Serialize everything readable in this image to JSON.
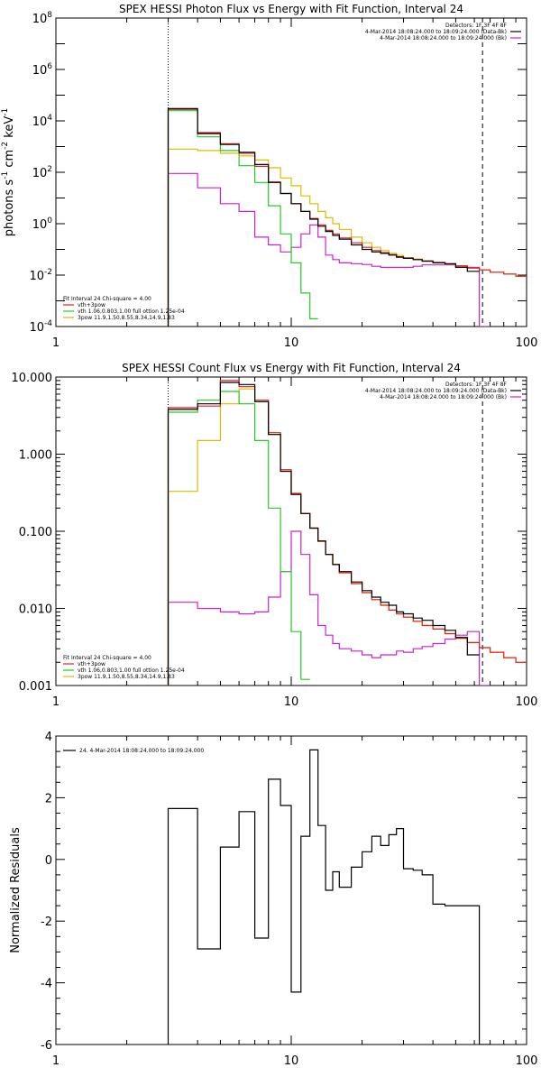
{
  "chart_data": [
    {
      "type": "line",
      "title": "SPEX HESSI Photon Flux vs Energy with Fit Function, Interval 24",
      "ylabel": "photons s^-1 cm^-2 keV^-1",
      "xscale": "log",
      "yscale": "log",
      "xlim": [
        1,
        100
      ],
      "ylim": [
        0.0001,
        100000000
      ],
      "xticks": [
        1,
        10,
        100
      ],
      "xtick_labels": [
        "1",
        "10",
        "100"
      ],
      "yticks": [
        0.0001,
        0.01,
        1,
        100,
        10000,
        1000000,
        100000000
      ],
      "ytick_labels": [
        "10^-4",
        "10^-2",
        "10^0",
        "10^2",
        "10^4",
        "10^6",
        "10^8"
      ],
      "vlines": [
        {
          "x": 3,
          "style": "dotted"
        },
        {
          "x": 65,
          "style": "dashed"
        }
      ],
      "legend_top_right": [
        {
          "text": "Detectors: 1F 3F 4F 8F",
          "color": ""
        },
        {
          "text": "4-Mar-2014 18:08:24.000 to 18:09:24.000 (Data-Bk)",
          "color": "#000000"
        },
        {
          "text": "4-Mar-2014 18:08:24.000 to 18:09:24.000 (Bk)",
          "color": "#cc22cc"
        }
      ],
      "legend_bottom_left": [
        {
          "text": "Fit Interval 24    Chi-square = 4.00",
          "color": ""
        },
        {
          "text": "vth+3pow",
          "color": "#dd2222"
        },
        {
          "text": "vth 1.06,0.803,1.00  full ottion 1.25e-04",
          "color": "#22cc22"
        },
        {
          "text": "3pow 11.9,1.50,8.55,8.34,14.9,1.83",
          "color": "#ddbb00"
        }
      ],
      "series": [
        {
          "name": "4-Mar-2014 18:08:24.000 to 18:09:24.000 (Data-Bk)",
          "color": "#000000",
          "edges": [
            3,
            4,
            5,
            6,
            7,
            8,
            9,
            10,
            11,
            12,
            13,
            14,
            15,
            16,
            18,
            20,
            22,
            24,
            26,
            28,
            30,
            33,
            36,
            40,
            45,
            50,
            56,
            63,
            70,
            80,
            90,
            100
          ],
          "values": [
            30000,
            3200,
            1200,
            600,
            200,
            40,
            15,
            6,
            3,
            1.5,
            0.8,
            0.5,
            0.35,
            0.25,
            0.15,
            0.1,
            0.08,
            0.07,
            0.06,
            0.05,
            0.045,
            0.04,
            0.035,
            0.03,
            0.028,
            0.02,
            0.014,
            null,
            null,
            null,
            null
          ]
        },
        {
          "name": "vth+3pow",
          "color": "#dd2222",
          "edges": [
            3,
            4,
            5,
            6,
            7,
            8,
            9,
            10,
            11,
            12,
            13,
            14,
            15,
            16,
            18,
            20,
            22,
            24,
            26,
            28,
            30,
            33,
            36,
            40,
            45,
            50,
            56,
            63,
            70,
            80,
            90,
            100
          ],
          "values": [
            28000,
            3500,
            1300,
            550,
            170,
            42,
            15,
            6,
            3,
            1.6,
            0.9,
            0.55,
            0.4,
            0.28,
            0.18,
            0.12,
            0.09,
            0.075,
            0.062,
            0.052,
            0.046,
            0.04,
            0.035,
            0.031,
            0.027,
            0.023,
            0.019,
            0.016,
            0.013,
            0.011,
            0.009
          ]
        },
        {
          "name": "vth 1.06,0.803,1.00  full ottion 1.25e-04",
          "color": "#22cc22",
          "edges": [
            3,
            4,
            5,
            6,
            7,
            8,
            9,
            10,
            11,
            12,
            13
          ],
          "values": [
            25000,
            2400,
            700,
            180,
            40,
            5,
            0.4,
            0.03,
            0.002,
            0.0002
          ]
        },
        {
          "name": "3pow 11.9,1.50,8.55,8.34,14.9,1.83",
          "color": "#ddbb00",
          "edges": [
            3,
            4,
            5,
            6,
            7,
            8,
            9,
            10,
            11,
            12,
            13,
            14,
            15,
            16,
            18,
            20,
            22,
            24,
            26,
            28,
            30,
            33,
            36,
            40,
            45,
            50,
            56,
            63,
            70,
            80,
            90,
            100
          ],
          "values": [
            800,
            700,
            550,
            430,
            300,
            150,
            60,
            30,
            12,
            6,
            3,
            1.7,
            1.0,
            0.6,
            0.3,
            0.18,
            0.12,
            0.09,
            0.07,
            0.058,
            0.048,
            0.042,
            0.036,
            0.031,
            0.027,
            0.023,
            0.019,
            0.016,
            0.013,
            0.011,
            0.009
          ]
        },
        {
          "name": "4-Mar-2014 18:08:24.000 to 18:09:24.000 (Bk)",
          "color": "#cc22cc",
          "edges": [
            3,
            4,
            5,
            6,
            7,
            8,
            9,
            10,
            11,
            12,
            13,
            14,
            15,
            16,
            18,
            20,
            22,
            24,
            26,
            28,
            30,
            33,
            36,
            40,
            45,
            50,
            56,
            63,
            70
          ],
          "values": [
            90,
            25,
            6,
            3,
            0.3,
            0.15,
            0.08,
            0.12,
            0.4,
            0.9,
            0.3,
            0.06,
            0.04,
            0.03,
            0.028,
            0.026,
            0.022,
            0.02,
            0.02,
            0.02,
            0.02,
            0.022,
            0.025,
            0.025,
            0.025,
            0.022,
            0.02,
            0.0001
          ]
        }
      ]
    },
    {
      "type": "line",
      "title": "SPEX HESSI Count Flux vs Energy with Fit Function, Interval 24",
      "ylabel": "",
      "xscale": "log",
      "yscale": "log",
      "xlim": [
        1,
        100
      ],
      "ylim": [
        0.001,
        10
      ],
      "xticks": [
        1,
        10,
        100
      ],
      "xtick_labels": [
        "1",
        "10",
        "100"
      ],
      "yticks": [
        0.001,
        0.01,
        0.1,
        1,
        10
      ],
      "ytick_labels": [
        "0.001",
        "0.010",
        "0.100",
        "1.000",
        "10.000"
      ],
      "vlines": [
        {
          "x": 3,
          "style": "dotted"
        },
        {
          "x": 65,
          "style": "dashed"
        }
      ],
      "legend_top_right": [
        {
          "text": "Detectors: 1F 3F 4F 8F",
          "color": ""
        },
        {
          "text": "4-Mar-2014 18:08:24.000 to 18:09:24.000 (Data-Bk)",
          "color": "#000000"
        },
        {
          "text": "4-Mar-2014 18:08:24.000 to 18:09:24.000 (Bk)",
          "color": "#cc22cc"
        }
      ],
      "legend_bottom_left": [
        {
          "text": "Fit Interval 24    Chi-square = 4.00",
          "color": ""
        },
        {
          "text": "vth+3pow",
          "color": "#dd2222"
        },
        {
          "text": "vth 1.06,0.803,1.00  full ottion 1.25e-04",
          "color": "#22cc22"
        },
        {
          "text": "3pow 11.9,1.50,8.55,8.34,14.9,1.83",
          "color": "#ddbb00"
        }
      ],
      "series": [
        {
          "name": "4-Mar-2014 18:08:24.000 to 18:09:24.000 (Data-Bk)",
          "color": "#000000",
          "edges": [
            3,
            4,
            5,
            6,
            7,
            8,
            9,
            10,
            11,
            12,
            13,
            14,
            15,
            16,
            18,
            20,
            22,
            24,
            26,
            28,
            30,
            33,
            36,
            40,
            45,
            50,
            56,
            63,
            70,
            80,
            90,
            100
          ],
          "values": [
            3.8,
            4.5,
            8.5,
            8,
            4.8,
            1.8,
            0.6,
            0.3,
            0.17,
            0.11,
            0.075,
            0.05,
            0.037,
            0.03,
            0.022,
            0.017,
            0.014,
            0.012,
            0.011,
            0.009,
            0.0085,
            0.0075,
            0.007,
            0.006,
            0.0052,
            0.0042,
            0.0025,
            null,
            null,
            null,
            null
          ]
        },
        {
          "name": "vth+3pow",
          "color": "#dd2222",
          "edges": [
            3,
            4,
            5,
            6,
            7,
            8,
            9,
            10,
            11,
            12,
            13,
            14,
            15,
            16,
            18,
            20,
            22,
            24,
            26,
            28,
            30,
            33,
            36,
            40,
            45,
            50,
            56,
            63,
            70,
            80,
            90,
            100
          ],
          "values": [
            4.0,
            4.2,
            9,
            7.5,
            5,
            1.9,
            0.63,
            0.31,
            0.17,
            0.11,
            0.074,
            0.05,
            0.037,
            0.029,
            0.021,
            0.016,
            0.013,
            0.011,
            0.0095,
            0.0085,
            0.0077,
            0.0068,
            0.006,
            0.0054,
            0.0047,
            0.0041,
            0.0036,
            0.0031,
            0.0027,
            0.0023,
            0.002
          ]
        },
        {
          "name": "vth 1.06,0.803,1.00  full ottion 1.25e-04",
          "color": "#22cc22",
          "edges": [
            3,
            4,
            5,
            6,
            7,
            8,
            9,
            10,
            11,
            12
          ],
          "values": [
            3.5,
            5,
            6.5,
            4.5,
            1.5,
            0.2,
            0.03,
            0.005,
            0.0012
          ]
        },
        {
          "name": "3pow 11.9,1.50,8.55,8.34,14.9,1.83",
          "color": "#ddbb00",
          "edges": [
            3,
            4,
            5,
            6,
            7,
            8,
            9,
            10,
            11,
            12,
            13,
            14,
            15,
            16,
            18,
            20,
            22,
            24,
            26,
            28,
            30,
            33,
            36,
            40,
            45,
            50,
            56,
            63,
            70,
            80,
            90,
            100
          ],
          "values": [
            0.33,
            1.5,
            4.5,
            7,
            4.8,
            1.8,
            0.6,
            0.3,
            0.17,
            0.11,
            0.074,
            0.05,
            0.037,
            0.029,
            0.021,
            0.016,
            0.013,
            0.011,
            0.0095,
            0.0085,
            0.0077,
            0.0068,
            0.006,
            0.0054,
            0.0047,
            0.0041,
            0.0036,
            0.0031,
            0.0027,
            0.0023,
            0.002
          ]
        },
        {
          "name": "4-Mar-2014 18:08:24.000 to 18:09:24.000 (Bk)",
          "color": "#cc22cc",
          "edges": [
            3,
            4,
            5,
            6,
            7,
            8,
            9,
            10,
            11,
            12,
            13,
            14,
            15,
            16,
            18,
            20,
            22,
            24,
            26,
            28,
            30,
            33,
            36,
            40,
            45,
            50,
            56,
            63,
            70
          ],
          "values": [
            0.012,
            0.01,
            0.009,
            0.0085,
            0.009,
            0.014,
            0.03,
            0.1,
            0.05,
            0.015,
            0.006,
            0.0045,
            0.0035,
            0.003,
            0.0028,
            0.0025,
            0.0023,
            0.0025,
            0.0025,
            0.0028,
            0.0027,
            0.003,
            0.0032,
            0.0035,
            0.004,
            0.0045,
            0.005,
            0.0004
          ]
        }
      ]
    },
    {
      "type": "line",
      "title": "",
      "ylabel": "Normalized Residuals",
      "xscale": "log",
      "yscale": "linear",
      "xlim": [
        1,
        100
      ],
      "ylim": [
        -6,
        4
      ],
      "xticks": [
        1,
        10,
        100
      ],
      "xtick_labels": [
        "1",
        "10",
        "100"
      ],
      "yticks": [
        -6,
        -4,
        -2,
        0,
        2,
        4
      ],
      "ytick_labels": [
        "-6",
        "-4",
        "-2",
        "0",
        "2",
        "4"
      ],
      "legend_top_left": [
        {
          "text": "24.  4-Mar-2014 18:08:24.000 to 18:09:24.000",
          "color": "#000000"
        }
      ],
      "series": [
        {
          "name": "24.  4-Mar-2014 18:08:24.000 to 18:09:24.000",
          "color": "#000000",
          "edges": [
            3,
            4,
            5,
            6,
            7,
            8,
            9,
            10,
            11,
            12,
            13,
            14,
            15,
            16,
            18,
            20,
            22,
            24,
            26,
            28,
            30,
            33,
            36,
            40,
            45,
            50,
            56,
            63,
            70
          ],
          "values": [
            1.65,
            -2.9,
            0.4,
            1.55,
            -2.55,
            2.6,
            1.75,
            -4.3,
            0.75,
            3.55,
            1.1,
            -1,
            -0.4,
            -0.9,
            -0.25,
            0.25,
            0.75,
            0.45,
            0.8,
            1.0,
            -0.3,
            -0.35,
            -0.5,
            -1.45,
            -1.5,
            -1.5,
            -1.5,
            -6
          ]
        }
      ]
    }
  ]
}
